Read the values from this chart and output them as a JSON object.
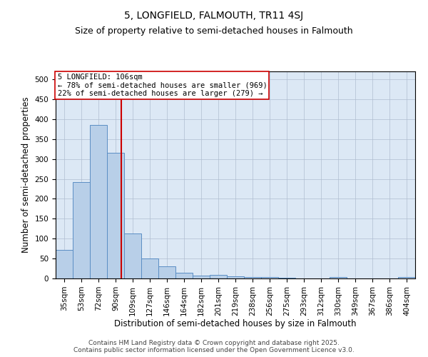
{
  "title": "5, LONGFIELD, FALMOUTH, TR11 4SJ",
  "subtitle": "Size of property relative to semi-detached houses in Falmouth",
  "xlabel": "Distribution of semi-detached houses by size in Falmouth",
  "ylabel": "Number of semi-detached properties",
  "bar_labels": [
    "35sqm",
    "53sqm",
    "72sqm",
    "90sqm",
    "109sqm",
    "127sqm",
    "146sqm",
    "164sqm",
    "182sqm",
    "201sqm",
    "219sqm",
    "238sqm",
    "256sqm",
    "275sqm",
    "293sqm",
    "312sqm",
    "330sqm",
    "349sqm",
    "367sqm",
    "386sqm",
    "404sqm"
  ],
  "bar_values": [
    72,
    242,
    386,
    315,
    113,
    50,
    30,
    15,
    8,
    9,
    5,
    3,
    3,
    1,
    0,
    0,
    4,
    0,
    0,
    0,
    4
  ],
  "bar_color": "#b8cfe8",
  "bar_edge_color": "#5b8ec4",
  "vline_color": "#cc0000",
  "ylim": [
    0,
    520
  ],
  "yticks": [
    0,
    50,
    100,
    150,
    200,
    250,
    300,
    350,
    400,
    450,
    500
  ],
  "annotation_title": "5 LONGFIELD: 106sqm",
  "annotation_line1": "← 78% of semi-detached houses are smaller (969)",
  "annotation_line2": "22% of semi-detached houses are larger (279) →",
  "annotation_box_color": "#ffffff",
  "annotation_box_edge": "#cc0000",
  "background_color": "#dce8f5",
  "footer_line1": "Contains HM Land Registry data © Crown copyright and database right 2025.",
  "footer_line2": "Contains public sector information licensed under the Open Government Licence v3.0.",
  "title_fontsize": 10,
  "subtitle_fontsize": 9,
  "axis_label_fontsize": 8.5,
  "tick_fontsize": 7.5,
  "annotation_fontsize": 7.5,
  "footer_fontsize": 6.5
}
